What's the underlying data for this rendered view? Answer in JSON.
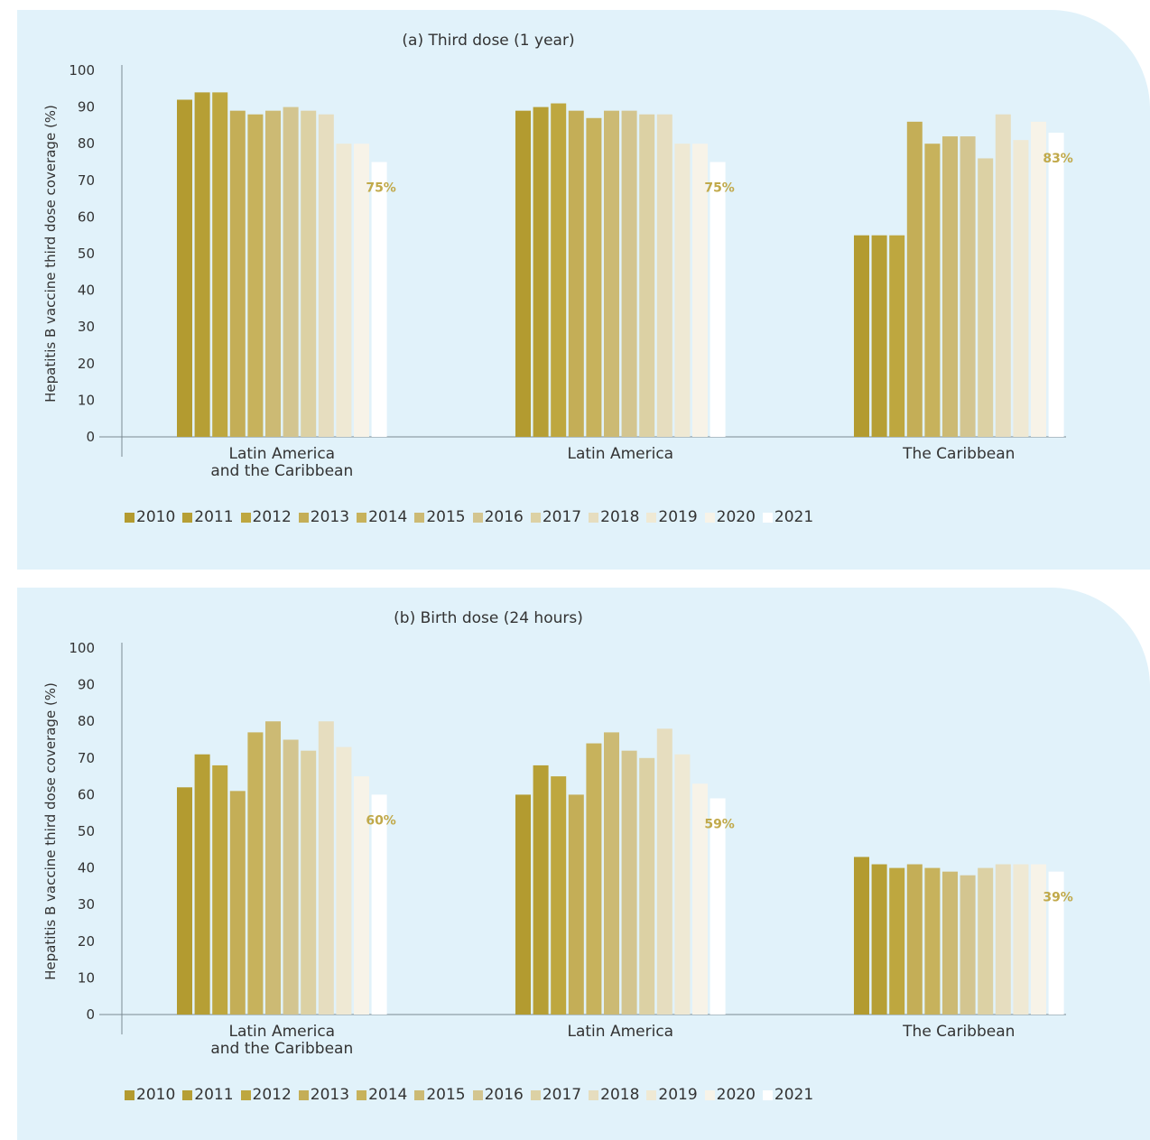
{
  "colors": [
    "#b39b30",
    "#b69f35",
    "#bea73f",
    "#c4ae57",
    "#c7b25c",
    "#ccba74",
    "#d3c590",
    "#dcd1a4",
    "#e6ddbf",
    "#efe9d4",
    "#f7f3e8",
    "#ffffff"
  ],
  "label_color": "#c1a94a",
  "chart_data": [
    {
      "type": "bar",
      "title": "(a) Third dose (1 year)",
      "ylabel": "Hepatitis B vaccine third dose coverage (%)",
      "ylim": [
        0,
        100
      ],
      "yticks": [
        "0",
        "10",
        "20",
        "30",
        "40",
        "50",
        "60",
        "70",
        "80",
        "90",
        "100"
      ],
      "categories": [
        "Latin America\nand the Caribbean",
        "Latin America",
        "The Caribbean"
      ],
      "category_lines": [
        [
          "Latin America",
          "and the Caribbean"
        ],
        [
          "Latin America"
        ],
        [
          "The Caribbean"
        ]
      ],
      "series": [
        {
          "name": "2010",
          "values": [
            92,
            89,
            55
          ]
        },
        {
          "name": "2011",
          "values": [
            94,
            90,
            55
          ]
        },
        {
          "name": "2012",
          "values": [
            94,
            91,
            55
          ]
        },
        {
          "name": "2013",
          "values": [
            89,
            89,
            86
          ]
        },
        {
          "name": "2014",
          "values": [
            88,
            87,
            80
          ]
        },
        {
          "name": "2015",
          "values": [
            89,
            89,
            82
          ]
        },
        {
          "name": "2016",
          "values": [
            90,
            89,
            82
          ]
        },
        {
          "name": "2017",
          "values": [
            89,
            88,
            76
          ]
        },
        {
          "name": "2018",
          "values": [
            88,
            88,
            88
          ]
        },
        {
          "name": "2019",
          "values": [
            80,
            80,
            81
          ]
        },
        {
          "name": "2020",
          "values": [
            80,
            80,
            86
          ]
        },
        {
          "name": "2021",
          "values": [
            75,
            75,
            83
          ]
        }
      ],
      "data_labels": [
        "75%",
        "75%",
        "83%"
      ],
      "grid": false,
      "legend_position": "bottom"
    },
    {
      "type": "bar",
      "title": "(b) Birth dose (24 hours)",
      "ylabel": "Hepatitis B vaccine third dose coverage (%)",
      "ylim": [
        0,
        100
      ],
      "yticks": [
        "0",
        "10",
        "20",
        "30",
        "40",
        "50",
        "60",
        "70",
        "80",
        "90",
        "100"
      ],
      "categories": [
        "Latin America\nand the Caribbean",
        "Latin America",
        "The Caribbean"
      ],
      "category_lines": [
        [
          "Latin America",
          "and the Caribbean"
        ],
        [
          "Latin America"
        ],
        [
          "The Caribbean"
        ]
      ],
      "series": [
        {
          "name": "2010",
          "values": [
            62,
            60,
            43
          ]
        },
        {
          "name": "2011",
          "values": [
            71,
            68,
            41
          ]
        },
        {
          "name": "2012",
          "values": [
            68,
            65,
            40
          ]
        },
        {
          "name": "2013",
          "values": [
            61,
            60,
            41
          ]
        },
        {
          "name": "2014",
          "values": [
            77,
            74,
            40
          ]
        },
        {
          "name": "2015",
          "values": [
            80,
            77,
            39
          ]
        },
        {
          "name": "2016",
          "values": [
            75,
            72,
            38
          ]
        },
        {
          "name": "2017",
          "values": [
            72,
            70,
            40
          ]
        },
        {
          "name": "2018",
          "values": [
            80,
            78,
            41
          ]
        },
        {
          "name": "2019",
          "values": [
            73,
            71,
            41
          ]
        },
        {
          "name": "2020",
          "values": [
            65,
            63,
            41
          ]
        },
        {
          "name": "2021",
          "values": [
            60,
            59,
            39
          ]
        }
      ],
      "data_labels": [
        "60%",
        "59%",
        "39%"
      ],
      "grid": false,
      "legend_position": "bottom"
    }
  ]
}
